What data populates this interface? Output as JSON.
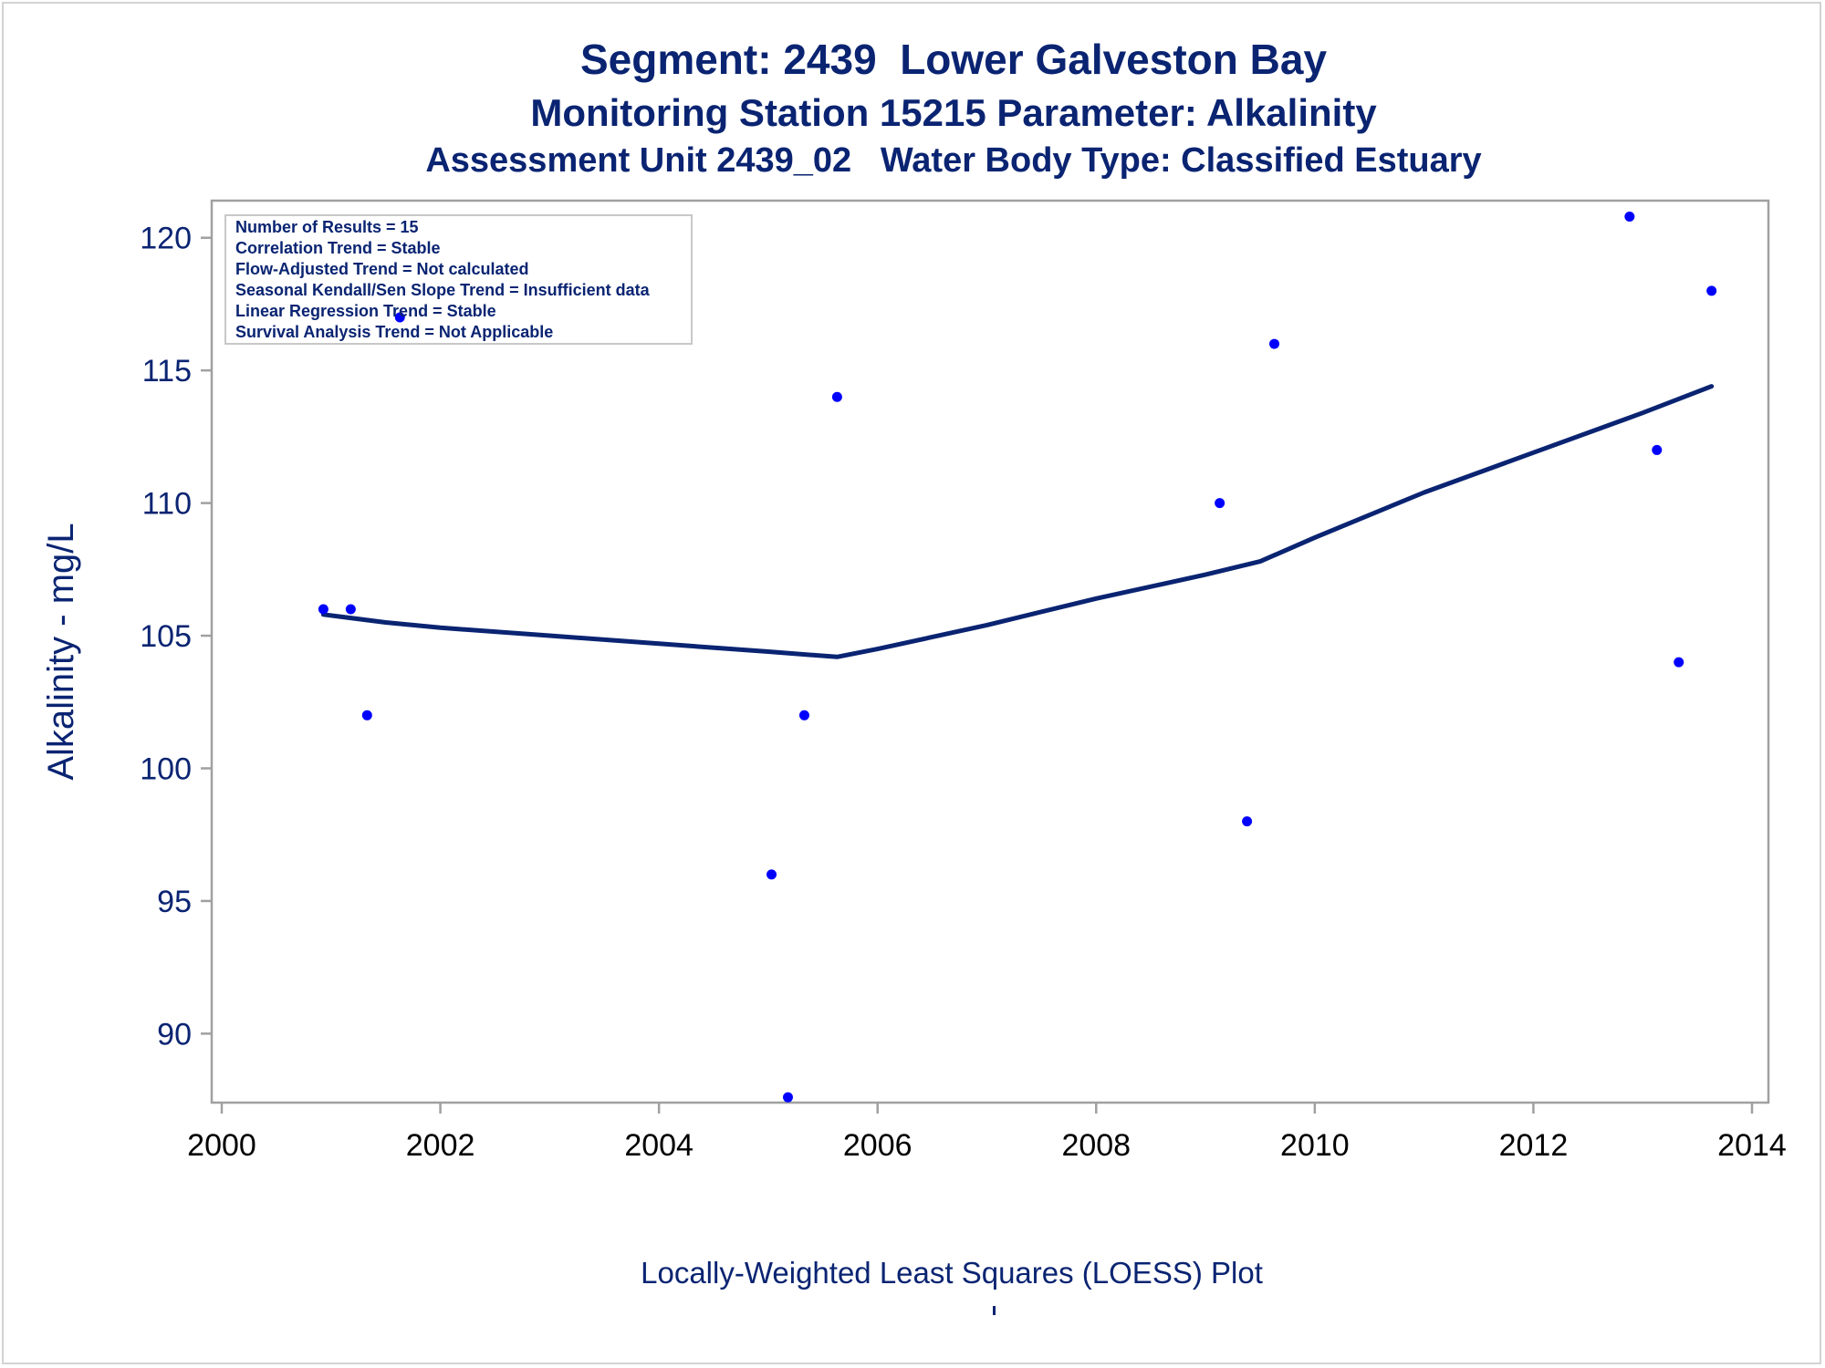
{
  "titles": {
    "line1": "Segment: 2439  Lower Galveston Bay",
    "line2": "Monitoring Station 15215 Parameter: Alkalinity",
    "line3": "Assessment Unit 2439_02   Water Body Type: Classified Estuary"
  },
  "info_box": [
    "Number of Results = 15",
    "Correlation Trend = Stable",
    "Flow-Adjusted Trend = Not calculated",
    "Seasonal Kendall/Sen Slope Trend = Insufficient data",
    "Linear Regression Trend = Stable",
    "Survival Analysis Trend = Not Applicable"
  ],
  "footnote": "Locally-Weighted Least Squares (LOESS) Plot",
  "colors": {
    "text": "#0a2472",
    "points": "#0000ff",
    "loess_line": "#0a2472",
    "axis_frame": "#a0a0a0"
  },
  "chart_data": {
    "type": "scatter",
    "ylabel": "Alkalinity - mg/L",
    "xlim": [
      2000,
      2014
    ],
    "ylim": [
      87.4,
      121.4
    ],
    "x_ticks": [
      2000,
      2002,
      2004,
      2006,
      2008,
      2010,
      2012,
      2014
    ],
    "y_ticks": [
      90,
      95,
      100,
      105,
      110,
      115,
      120
    ],
    "grid": false,
    "points": [
      {
        "x": 2000.93,
        "y": 106
      },
      {
        "x": 2001.18,
        "y": 106
      },
      {
        "x": 2001.33,
        "y": 102
      },
      {
        "x": 2001.63,
        "y": 117
      },
      {
        "x": 2005.03,
        "y": 96
      },
      {
        "x": 2005.18,
        "y": 87.6
      },
      {
        "x": 2005.33,
        "y": 102
      },
      {
        "x": 2005.63,
        "y": 114
      },
      {
        "x": 2009.13,
        "y": 110
      },
      {
        "x": 2009.38,
        "y": 98
      },
      {
        "x": 2009.63,
        "y": 116
      },
      {
        "x": 2012.88,
        "y": 120.8
      },
      {
        "x": 2013.13,
        "y": 112
      },
      {
        "x": 2013.33,
        "y": 104
      },
      {
        "x": 2013.63,
        "y": 118
      }
    ],
    "loess": [
      {
        "x": 2000.93,
        "y": 105.8
      },
      {
        "x": 2001.5,
        "y": 105.5
      },
      {
        "x": 2002.0,
        "y": 105.3
      },
      {
        "x": 2003.0,
        "y": 105.0
      },
      {
        "x": 2004.0,
        "y": 104.7
      },
      {
        "x": 2005.0,
        "y": 104.4
      },
      {
        "x": 2005.63,
        "y": 104.2
      },
      {
        "x": 2006.0,
        "y": 104.5
      },
      {
        "x": 2007.0,
        "y": 105.4
      },
      {
        "x": 2008.0,
        "y": 106.4
      },
      {
        "x": 2009.0,
        "y": 107.3
      },
      {
        "x": 2009.5,
        "y": 107.8
      },
      {
        "x": 2010.0,
        "y": 108.7
      },
      {
        "x": 2011.0,
        "y": 110.4
      },
      {
        "x": 2012.0,
        "y": 111.9
      },
      {
        "x": 2013.0,
        "y": 113.4
      },
      {
        "x": 2013.63,
        "y": 114.4
      }
    ]
  }
}
